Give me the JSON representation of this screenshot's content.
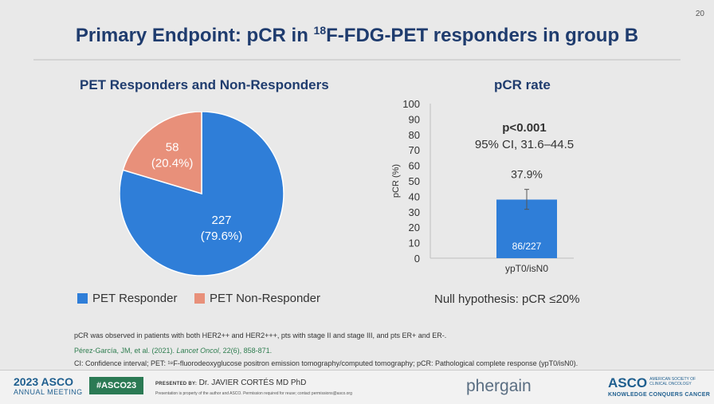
{
  "slide_number": "20",
  "title": {
    "prefix": "Primary Endpoint: pCR in ",
    "sup": "18",
    "suffix": "F-FDG-PET responders in group B"
  },
  "pie": {
    "title": "PET Responders and Non-Responders",
    "legend": [
      "PET Responder",
      "PET Non-Responder"
    ]
  },
  "bar": {
    "title": "pCR rate",
    "pvalue": "p<0.001",
    "ci": "95% CI, 31.6–44.5",
    "null_hypothesis": "Null hypothesis: pCR ≤20%"
  },
  "notes": {
    "line1": "pCR was observed in patients with both HER2++ and HER2+++, pts with stage II and stage III, and pts ER+ and ER-.",
    "line2_a": "Pérez-García, JM, et al. (2021). ",
    "line2_journal": "Lancet Oncol",
    "line2_b": ", 22(6), 858-871.",
    "line3": "CI: Confidence interval; PET: ¹⁸F-fluorodeoxyglucose positron emission tomography/computed tomography; pCR: Pathological complete response (ypT0/isN0)."
  },
  "footer": {
    "year": "2023 ASCO",
    "meeting": "ANNUAL MEETING",
    "hashtag": "#ASCO23",
    "presented_by": "PRESENTED BY:",
    "presenter": "Dr. JAVIER CORTÉS MD PhD",
    "disclaimer": "Presentation is property of the author and ASCO. Permission required for reuse; contact permissions@asco.org",
    "sponsor": "phergain",
    "asco": "ASCO",
    "asco_society": "AMERICAN SOCIETY OF CLINICAL ONCOLOGY",
    "asco_tagline": "KNOWLEDGE CONQUERS CANCER"
  },
  "colors": {
    "responder": "#2f7ed8",
    "non_responder": "#e8907a",
    "bar": "#2f7ed8",
    "title": "#1f3c6e"
  },
  "chart_data": [
    {
      "type": "pie",
      "title": "PET Responders and Non-Responders",
      "categories": [
        "PET Responder",
        "PET Non-Responder"
      ],
      "values": [
        227,
        58
      ],
      "labels": [
        "227",
        "58"
      ],
      "percent_labels": [
        "(79.6%)",
        "(20.4%)"
      ]
    },
    {
      "type": "bar",
      "title": "pCR rate",
      "categories": [
        "ypT0/isN0"
      ],
      "values": [
        37.9
      ],
      "value_labels": [
        "37.9%"
      ],
      "inner_labels": [
        "86/227"
      ],
      "error": [
        [
          31.6,
          44.5
        ]
      ],
      "ylabel": "pCR (%)",
      "ylim": [
        0,
        100
      ],
      "yticks": [
        "0",
        "10",
        "20",
        "30",
        "40",
        "50",
        "60",
        "70",
        "80",
        "90",
        "100"
      ]
    }
  ]
}
